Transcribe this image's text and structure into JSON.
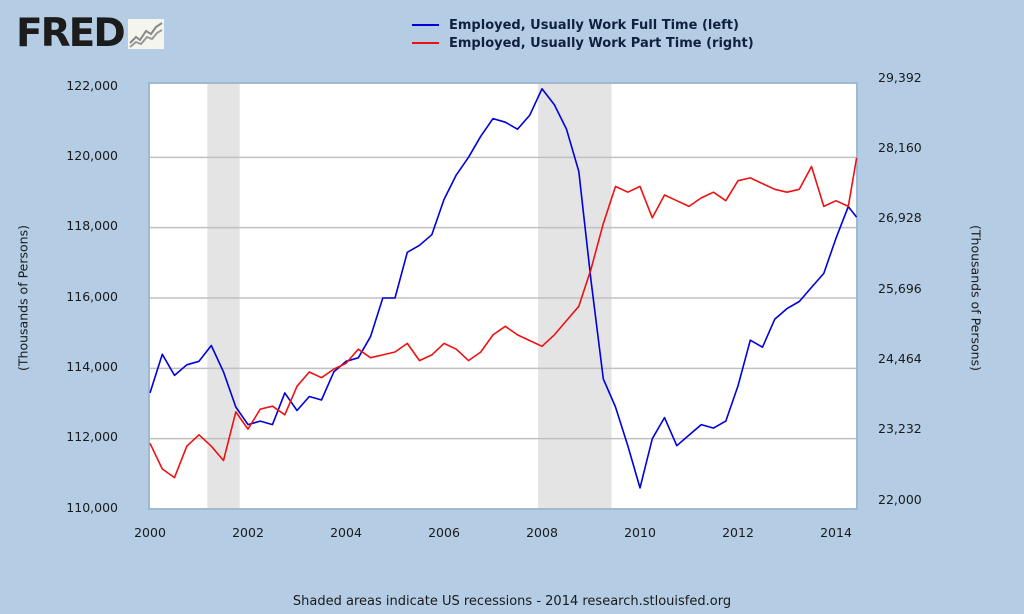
{
  "logo": {
    "text": "FRED",
    "icon": "fred-graph-icon"
  },
  "legend": [
    {
      "label": "Employed, Usually Work Full Time (left)",
      "color": "#0000dd"
    },
    {
      "label": "Employed, Usually Work Part Time (right)",
      "color": "#ee1111"
    }
  ],
  "left_axis": {
    "title": "(Thousands of Persons)",
    "ticks": [
      "122,000",
      "120,000",
      "118,000",
      "116,000",
      "114,000",
      "112,000",
      "110,000"
    ]
  },
  "right_axis": {
    "title": "(Thousands of Persons)",
    "ticks": [
      "29,392",
      "28,160",
      "26,928",
      "25,696",
      "24,464",
      "23,232",
      "22,000"
    ]
  },
  "x_axis": {
    "ticks": [
      "2000",
      "2002",
      "2004",
      "2006",
      "2008",
      "2010",
      "2012",
      "2014"
    ]
  },
  "footer": "Shaded areas indicate US recessions - 2014 research.stlouisfed.org",
  "colors": {
    "background": "#b4cde4",
    "plot_bg": "#ffffff",
    "grid": "#c0c0c0",
    "recession": "#e4e4e4",
    "full_time": "#0000dd",
    "part_time": "#ee1111"
  },
  "chart_data": {
    "type": "line",
    "title": "",
    "xlabel": "",
    "ylabel": "(Thousands of Persons)",
    "y2label": "(Thousands of Persons)",
    "xlim": [
      2000,
      2014.45
    ],
    "ylim": [
      110000,
      122000
    ],
    "y2lim": [
      22000,
      29392
    ],
    "grid": true,
    "legend_position": "top",
    "recessions": [
      [
        2001.17,
        2001.83
      ],
      [
        2007.92,
        2009.42
      ]
    ],
    "x": [
      2000.0,
      2000.25,
      2000.5,
      2000.75,
      2001.0,
      2001.25,
      2001.5,
      2001.75,
      2002.0,
      2002.25,
      2002.5,
      2002.75,
      2003.0,
      2003.25,
      2003.5,
      2003.75,
      2004.0,
      2004.25,
      2004.5,
      2004.75,
      2005.0,
      2005.25,
      2005.5,
      2005.75,
      2006.0,
      2006.25,
      2006.5,
      2006.75,
      2007.0,
      2007.25,
      2007.5,
      2007.75,
      2008.0,
      2008.25,
      2008.5,
      2008.75,
      2009.0,
      2009.25,
      2009.5,
      2009.75,
      2010.0,
      2010.25,
      2010.5,
      2010.75,
      2011.0,
      2011.25,
      2011.5,
      2011.75,
      2012.0,
      2012.25,
      2012.5,
      2012.75,
      2013.0,
      2013.25,
      2013.5,
      2013.75,
      2014.0,
      2014.25,
      2014.42
    ],
    "series": [
      {
        "name": "Employed, Usually Work Full Time (left)",
        "axis": "left",
        "values": [
          113300,
          114400,
          113800,
          114100,
          114200,
          114650,
          113900,
          112900,
          112400,
          112500,
          112400,
          113300,
          112800,
          113200,
          113100,
          113900,
          114200,
          114300,
          114900,
          116000,
          116000,
          117300,
          117500,
          117800,
          118800,
          119500,
          120000,
          120600,
          121100,
          121000,
          120800,
          121200,
          121950,
          121500,
          120800,
          119600,
          116500,
          113700,
          112900,
          111800,
          110600,
          112000,
          112600,
          111800,
          112100,
          112400,
          112300,
          112500,
          113500,
          114800,
          114600,
          115400,
          115700,
          115900,
          116300,
          116700,
          117700,
          118600,
          118300
        ]
      },
      {
        "name": "Employed, Usually Work Part Time (right)",
        "axis": "right",
        "values": [
          23150,
          22700,
          22550,
          23100,
          23300,
          23100,
          22850,
          23700,
          23400,
          23750,
          23800,
          23650,
          24150,
          24400,
          24300,
          24450,
          24550,
          24800,
          24650,
          24700,
          24750,
          24900,
          24600,
          24700,
          24900,
          24800,
          24600,
          24750,
          25050,
          25200,
          25050,
          24950,
          24850,
          25050,
          25300,
          25550,
          26200,
          27000,
          27650,
          27550,
          27650,
          27100,
          27500,
          27400,
          27300,
          27450,
          27550,
          27400,
          27750,
          27800,
          27700,
          27600,
          27550,
          27600,
          28000,
          27300,
          27400,
          27300,
          28150
        ]
      }
    ]
  }
}
